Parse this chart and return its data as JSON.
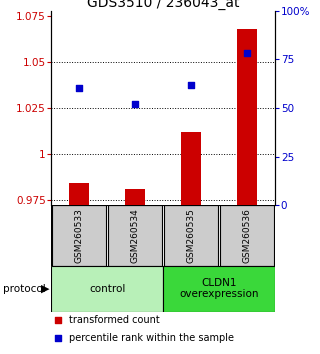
{
  "title": "GDS3510 / 236043_at",
  "samples": [
    "GSM260533",
    "GSM260534",
    "GSM260535",
    "GSM260536"
  ],
  "red_values": [
    0.984,
    0.981,
    1.012,
    1.068
  ],
  "blue_values": [
    60,
    52,
    62,
    78
  ],
  "ylim_left": [
    0.972,
    1.078
  ],
  "ylim_right": [
    0,
    100
  ],
  "yticks_left": [
    0.975,
    1.0,
    1.025,
    1.05,
    1.075
  ],
  "yticks_right": [
    0,
    25,
    50,
    75,
    100
  ],
  "ytick_labels_left": [
    "0.975",
    "1",
    "1.025",
    "1.05",
    "1.075"
  ],
  "ytick_labels_right": [
    "0",
    "25",
    "50",
    "75",
    "100%"
  ],
  "hlines": [
    0.975,
    1.0,
    1.025,
    1.05
  ],
  "groups": [
    {
      "label": "control",
      "samples": [
        0,
        1
      ],
      "color": "#b8f0b8"
    },
    {
      "label": "CLDN1\noverexpression",
      "samples": [
        2,
        3
      ],
      "color": "#3ad83a"
    }
  ],
  "bar_color": "#cc0000",
  "dot_color": "#0000cc",
  "bar_width": 0.35,
  "bg_color": "#ffffff",
  "title_fontsize": 10,
  "tick_fontsize": 7.5,
  "legend_fontsize": 7,
  "group_label_fontsize": 7.5,
  "sample_fontsize": 6.5,
  "protocol_label": "protocol",
  "legend_items": [
    "transformed count",
    "percentile rank within the sample"
  ]
}
